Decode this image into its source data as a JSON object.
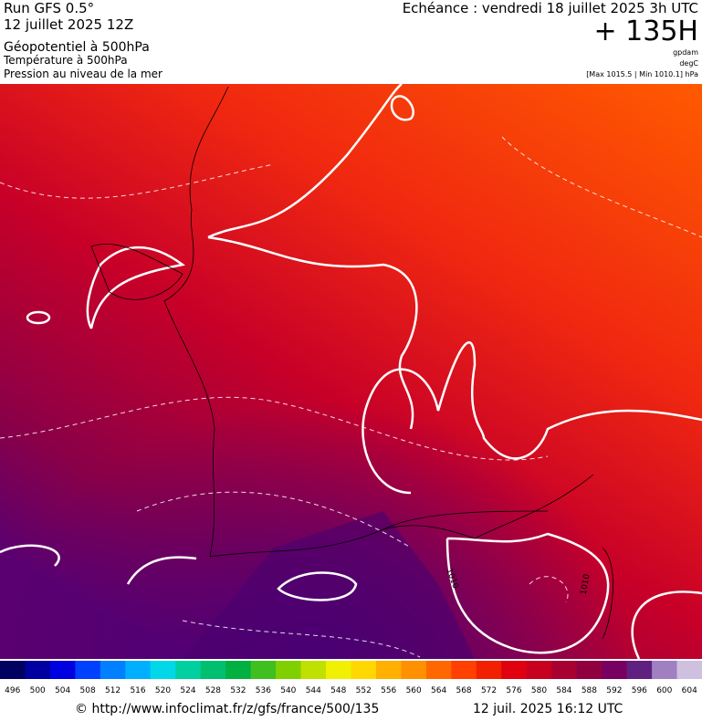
{
  "header": {
    "run": "Run GFS 0.5°",
    "date": "12 juillet 2025 12Z",
    "field1": "Géopotentiel à 500hPa",
    "field2": "Température à 500hPa",
    "field3": "Pression au niveau de la mer",
    "echeance": "Echéance : vendredi 18 juillet 2025 3h UTC",
    "lead": "+ 135H",
    "unit1": "gpdam",
    "unit2": "degC",
    "unit3": "[Max 1015.5 | Min 1010.1] hPa"
  },
  "map": {
    "labels": [
      "1010",
      "1010"
    ]
  },
  "legend": {
    "ticks": [
      496,
      500,
      504,
      508,
      512,
      516,
      520,
      524,
      528,
      532,
      536,
      540,
      544,
      548,
      552,
      556,
      560,
      564,
      568,
      572,
      576,
      580,
      584,
      588,
      592,
      596,
      600,
      604
    ],
    "colors": [
      "#000060",
      "#0000a0",
      "#0000e0",
      "#0040ff",
      "#0080ff",
      "#00b0ff",
      "#00d8e8",
      "#00d0a0",
      "#00c070",
      "#00b040",
      "#40c020",
      "#80d000",
      "#c0e000",
      "#f0f000",
      "#ffd800",
      "#ffb000",
      "#ff9000",
      "#ff6800",
      "#ff4000",
      "#f02000",
      "#e00010",
      "#c80020",
      "#a80030",
      "#900040",
      "#780060",
      "#602080",
      "#a080c0",
      "#d0c0e0"
    ]
  },
  "footer": {
    "url": "© http://www.infoclimat.fr/z/gfs/france/500/135",
    "stamp": "12 juil. 2025 16:12 UTC"
  }
}
